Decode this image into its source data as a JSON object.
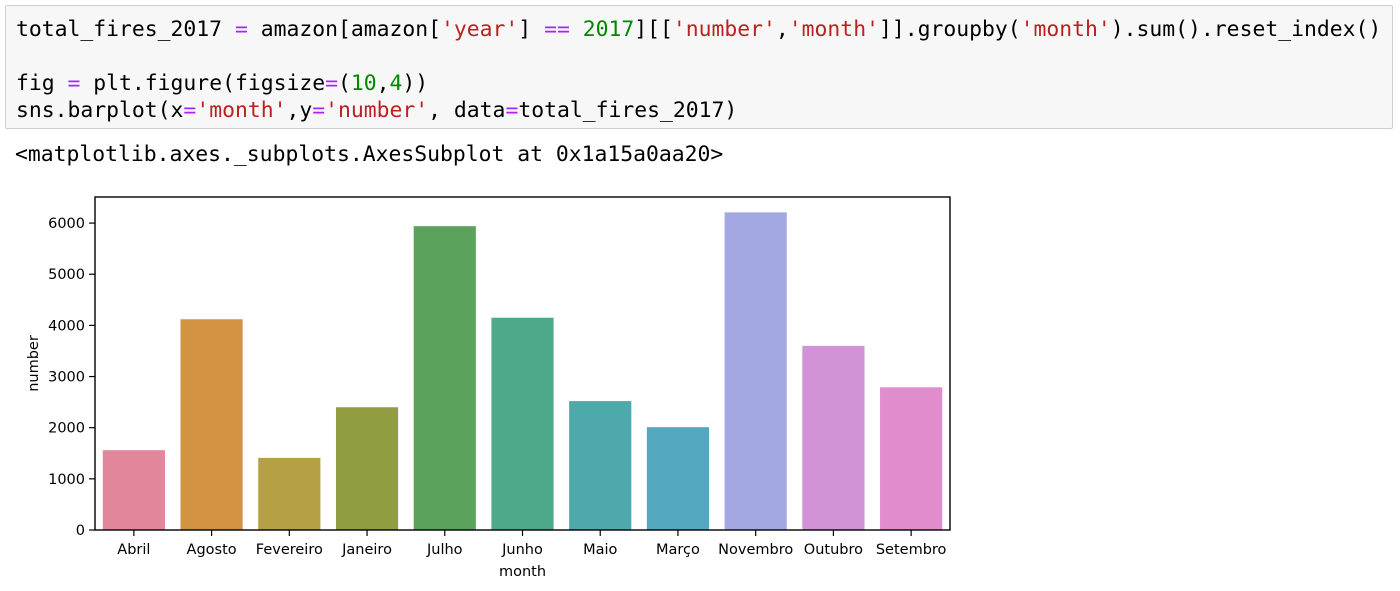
{
  "code_cell": {
    "lines": [
      [
        {
          "t": "total_fires_2017 ",
          "c": ""
        },
        {
          "t": "=",
          "c": "op"
        },
        {
          "t": " amazon[amazon[",
          "c": ""
        },
        {
          "t": "'year'",
          "c": "str"
        },
        {
          "t": "] ",
          "c": ""
        },
        {
          "t": "==",
          "c": "op"
        },
        {
          "t": " ",
          "c": ""
        },
        {
          "t": "2017",
          "c": "num"
        },
        {
          "t": "][[",
          "c": ""
        },
        {
          "t": "'number'",
          "c": "str"
        },
        {
          "t": ",",
          "c": ""
        },
        {
          "t": "'month'",
          "c": "str"
        },
        {
          "t": "]].groupby(",
          "c": ""
        },
        {
          "t": "'month'",
          "c": "str"
        },
        {
          "t": ").sum().reset_index()",
          "c": ""
        }
      ],
      [],
      [
        {
          "t": "fig ",
          "c": ""
        },
        {
          "t": "=",
          "c": "op"
        },
        {
          "t": " plt.figure(figsize",
          "c": ""
        },
        {
          "t": "=",
          "c": "op"
        },
        {
          "t": "(",
          "c": ""
        },
        {
          "t": "10",
          "c": "num"
        },
        {
          "t": ",",
          "c": ""
        },
        {
          "t": "4",
          "c": "num"
        },
        {
          "t": "))",
          "c": ""
        }
      ],
      [
        {
          "t": "sns.barplot(x",
          "c": ""
        },
        {
          "t": "=",
          "c": "op"
        },
        {
          "t": "'month'",
          "c": "str"
        },
        {
          "t": ",y",
          "c": ""
        },
        {
          "t": "=",
          "c": "op"
        },
        {
          "t": "'number'",
          "c": "str"
        },
        {
          "t": ", data",
          "c": ""
        },
        {
          "t": "=",
          "c": "op"
        },
        {
          "t": "total_fires_2017)",
          "c": ""
        }
      ]
    ]
  },
  "output": {
    "repr": "<matplotlib.axes._subplots.AxesSubplot at 0x1a15a0aa20>"
  },
  "chart_data": {
    "type": "bar",
    "categories": [
      "Abril",
      "Agosto",
      "Fevereiro",
      "Janeiro",
      "Julho",
      "Junho",
      "Maio",
      "Março",
      "Novembro",
      "Outubro",
      "Setembro"
    ],
    "values": [
      1560,
      4120,
      1410,
      2400,
      5940,
      4150,
      2520,
      2010,
      6210,
      3600,
      2790
    ],
    "colors": [
      "#e1869b",
      "#d29343",
      "#b5a046",
      "#929d42",
      "#5ba25b",
      "#4ea98b",
      "#4ea9ab",
      "#53a8c0",
      "#a4a8e2",
      "#d192d7",
      "#e18ccc"
    ],
    "xlabel": "month",
    "ylabel": "number",
    "ylim": [
      0,
      6510
    ],
    "yticks": [
      0,
      1000,
      2000,
      3000,
      4000,
      5000,
      6000
    ],
    "title": "",
    "grid": false
  }
}
